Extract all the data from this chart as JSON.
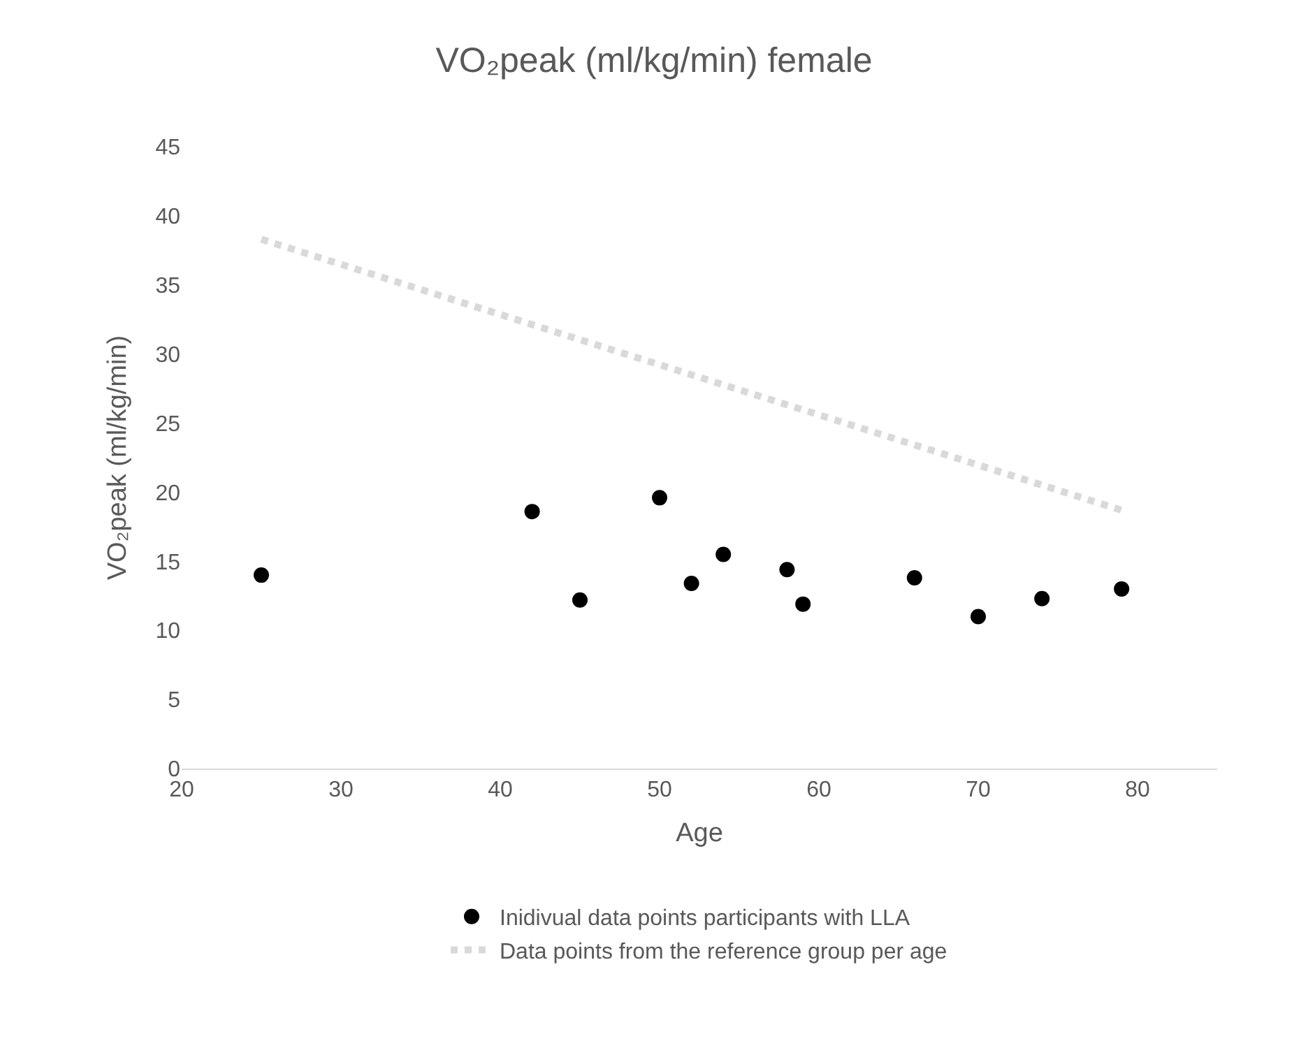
{
  "chart_data": {
    "type": "scatter",
    "title": "VO₂peak (ml/kg/min) female",
    "xlabel": "Age",
    "ylabel": "VO₂peak (ml/kg/min)",
    "xlim": [
      20,
      85
    ],
    "xticks": [
      20,
      30,
      40,
      50,
      60,
      70,
      80
    ],
    "ylim": [
      0,
      45
    ],
    "yticks": [
      0,
      5,
      10,
      15,
      20,
      25,
      30,
      35,
      40,
      45
    ],
    "grid": false,
    "legend": "bottom",
    "series": [
      {
        "name": "Inidivual data points participants with LLA",
        "color": "#000000",
        "marker": "circle",
        "x": [
          25,
          42,
          45,
          50,
          52,
          54,
          58,
          59,
          66,
          70,
          74,
          79
        ],
        "values": [
          14.0,
          18.6,
          12.2,
          19.6,
          13.4,
          15.5,
          14.4,
          11.9,
          13.8,
          11.0,
          12.3,
          13.0
        ]
      },
      {
        "name": "Data points from the reference group per age",
        "color": "#d9d9d9",
        "type": "line",
        "line_style": "dotted",
        "x": [
          25,
          79
        ],
        "values": [
          38.3,
          18.7
        ]
      }
    ]
  }
}
